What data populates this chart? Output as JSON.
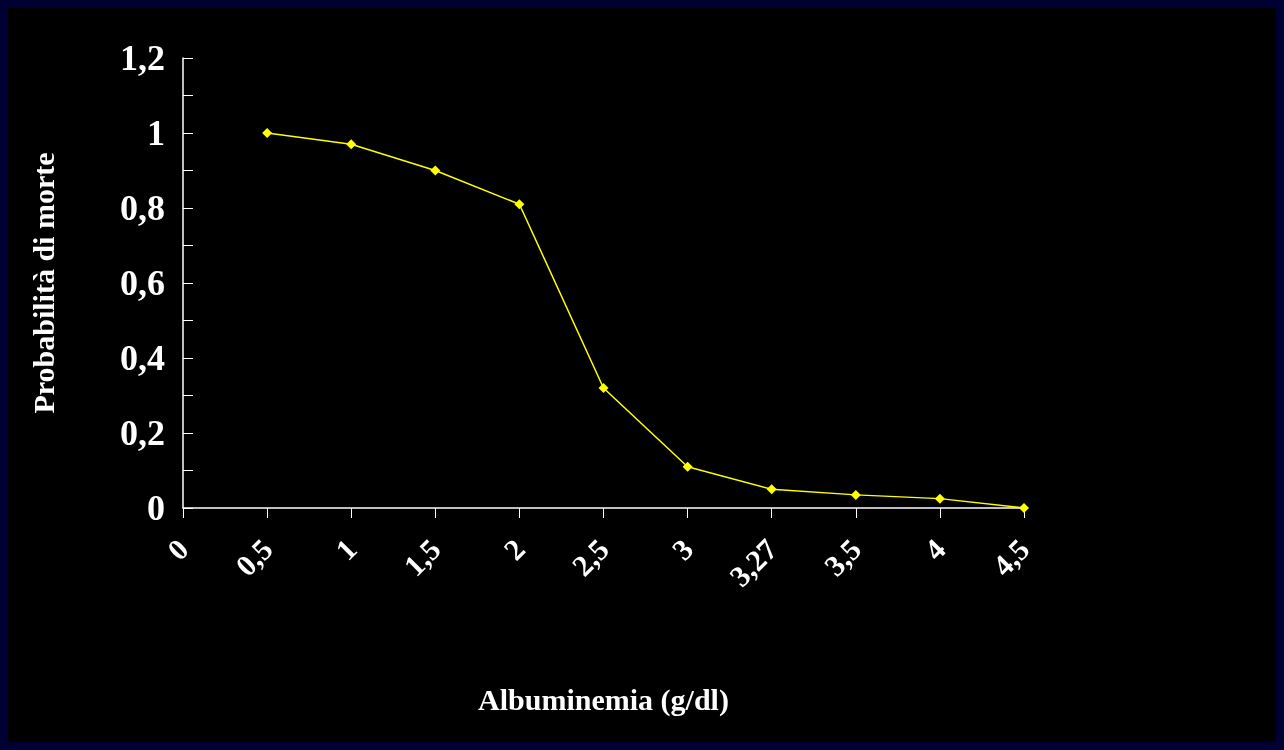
{
  "chart_data": {
    "type": "line",
    "xlabel": "Albuminemia (g/dl)",
    "ylabel": "Probabilità di morte",
    "categories": [
      "0",
      "0,5",
      "1",
      "1,5",
      "2",
      "2,5",
      "3",
      "3,27",
      "3,5",
      "4",
      "4,5"
    ],
    "series": [
      {
        "color": "#ffff00",
        "values": [
          null,
          1,
          0.97,
          0.9,
          0.81,
          0.32,
          0.11,
          0.05,
          0.035,
          0.025,
          0
        ]
      }
    ],
    "ylim": [
      0,
      1.2
    ],
    "yticks": [
      0,
      {
        "value": 0.1,
        "label": null
      },
      {
        "value": 0.2,
        "label": "0,2"
      },
      {
        "value": 0.3,
        "label": null
      },
      {
        "value": 0.4,
        "label": "0,4"
      },
      {
        "value": 0.5,
        "label": null
      },
      {
        "value": 0.6,
        "label": "0,6"
      },
      {
        "value": 0.7,
        "label": null
      },
      {
        "value": 0.8,
        "label": "0,8"
      },
      {
        "value": 0.9,
        "label": null
      },
      1,
      {
        "value": 1.1,
        "label": null
      },
      {
        "value": 1.2,
        "label": "1,2"
      }
    ],
    "grid": false,
    "marker": "diamond",
    "line_style": "solid"
  }
}
